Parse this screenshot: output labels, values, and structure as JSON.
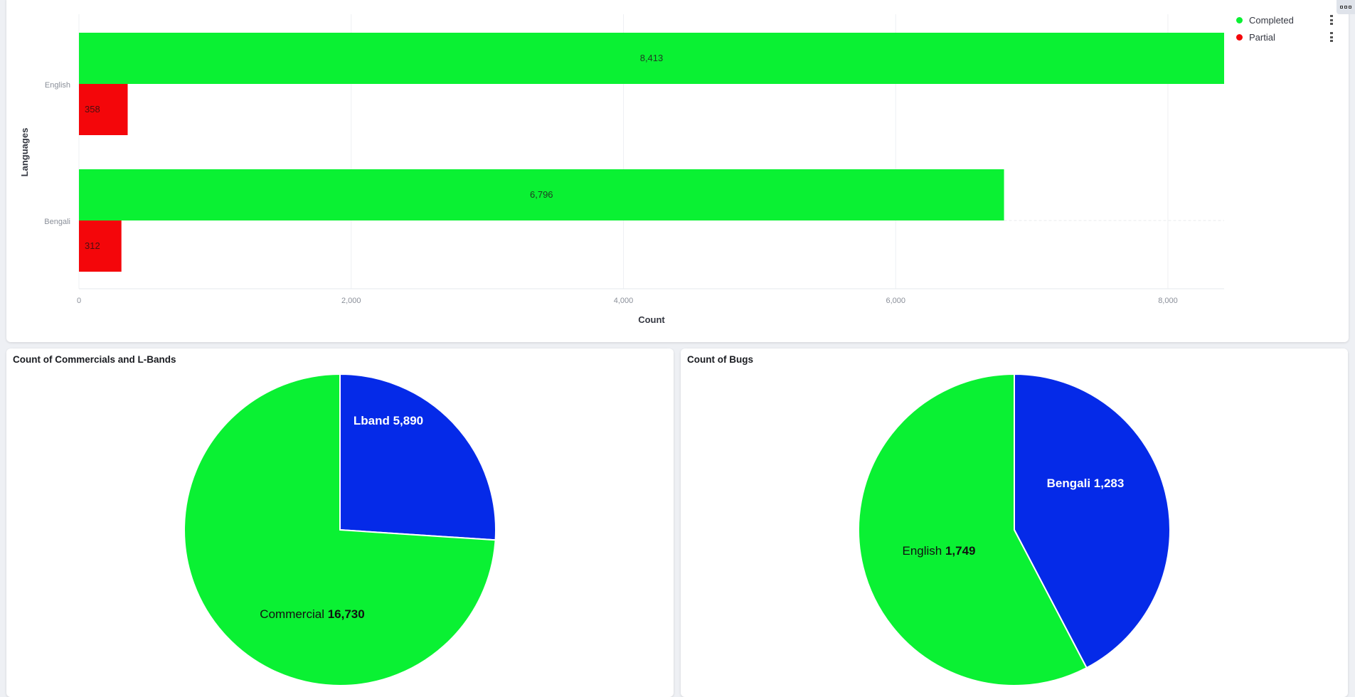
{
  "toolbar": {
    "menu_icon": "options-icon"
  },
  "bar_panel": {
    "legend": [
      {
        "label": "Completed",
        "color": "#0af133"
      },
      {
        "label": "Partial",
        "color": "#f4060a"
      }
    ]
  },
  "pie_panels": {
    "commercials": {
      "title": "Count of Commercials and L-Bands"
    },
    "bugs": {
      "title": "Count of Bugs"
    }
  },
  "chart_data": [
    {
      "type": "bar",
      "orientation": "horizontal",
      "categories": [
        "English",
        "Bengali"
      ],
      "series": [
        {
          "name": "Completed",
          "values": [
            8413,
            6796
          ],
          "labels": [
            "8,413",
            "6,796"
          ],
          "color": "#0af133"
        },
        {
          "name": "Partial",
          "values": [
            358,
            312
          ],
          "labels": [
            "358",
            "312"
          ],
          "color": "#f4060a"
        }
      ],
      "xlabel": "Count",
      "ylabel": "Languages",
      "xlim": [
        0,
        8413
      ],
      "xticks": [
        0,
        2000,
        4000,
        6000,
        8000
      ],
      "xtick_labels": [
        "0",
        "2,000",
        "4,000",
        "6,000",
        "8,000"
      ],
      "grid": true,
      "legend_position": "top-right"
    },
    {
      "type": "pie",
      "title": "Count of Commercials and L-Bands",
      "slices": [
        {
          "label": "Lband",
          "value": 5890,
          "value_label": "5,890",
          "color": "#052ae8",
          "text_color": "#ffffff"
        },
        {
          "label": "Commercial",
          "value": 16730,
          "value_label": "16,730",
          "color": "#0af133",
          "text_color": "#111111"
        }
      ]
    },
    {
      "type": "pie",
      "title": "Count of Bugs",
      "slices": [
        {
          "label": "Bengali",
          "value": 1283,
          "value_label": "1,283",
          "color": "#052ae8",
          "text_color": "#ffffff"
        },
        {
          "label": "English",
          "value": 1749,
          "value_label": "1,749",
          "color": "#0af133",
          "text_color": "#111111"
        }
      ]
    }
  ]
}
